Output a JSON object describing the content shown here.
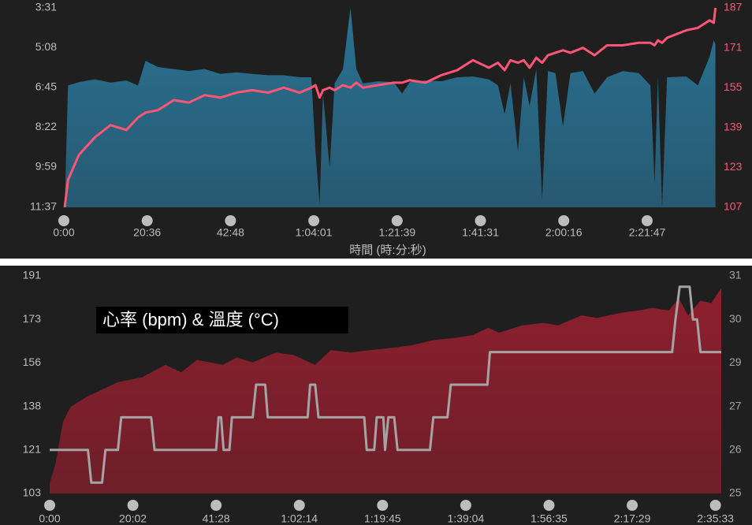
{
  "chart_data": [
    {
      "type": "combo",
      "xlabel": "時間 (時:分:秒)",
      "xlim": [
        0,
        7.82
      ],
      "xticks": [
        {
          "value": 0,
          "label": "0:00"
        },
        {
          "value": 1,
          "label": "20:36"
        },
        {
          "value": 2,
          "label": "42:48"
        },
        {
          "value": 3,
          "label": "1:04:01"
        },
        {
          "value": 4,
          "label": "1:21:39"
        },
        {
          "value": 5,
          "label": "1:41:31"
        },
        {
          "value": 6,
          "label": "2:00:16"
        },
        {
          "value": 7,
          "label": "2:21:47"
        }
      ],
      "ylim": [
        697,
        211
      ],
      "yticks": [
        {
          "value": 211,
          "label": "3:31"
        },
        {
          "value": 308,
          "label": "5:08"
        },
        {
          "value": 405,
          "label": "6:45"
        },
        {
          "value": 502,
          "label": "8:22"
        },
        {
          "value": 599,
          "label": "9:59"
        },
        {
          "value": 697,
          "label": "11:37"
        }
      ],
      "y2lim": [
        107,
        187
      ],
      "y2ticks": [
        187,
        171,
        155,
        139,
        123,
        107
      ],
      "x": [
        0.01,
        0.05,
        0.18,
        0.37,
        0.56,
        0.75,
        0.89,
        0.98,
        1.13,
        1.32,
        1.5,
        1.69,
        1.88,
        2.07,
        2.26,
        2.45,
        2.64,
        2.83,
        2.97,
        3.02,
        3.07,
        3.11,
        3.19,
        3.25,
        3.35,
        3.44,
        3.51,
        3.59,
        3.77,
        3.96,
        4.06,
        4.15,
        4.34,
        4.53,
        4.72,
        4.91,
        5.1,
        5.21,
        5.29,
        5.36,
        5.45,
        5.52,
        5.59,
        5.67,
        5.74,
        5.81,
        5.9,
        5.99,
        6.08,
        6.23,
        6.37,
        6.52,
        6.71,
        6.9,
        7.04,
        7.09,
        7.13,
        7.18,
        7.24,
        7.47,
        7.61,
        7.75,
        7.8,
        7.82
      ],
      "series": [
        {
          "style": "area",
          "color": "#2a7293",
          "values": [
            697,
            400,
            392,
            385,
            393,
            388,
            400,
            340,
            355,
            360,
            365,
            360,
            372,
            368,
            372,
            375,
            375,
            380,
            380,
            560,
            690,
            420,
            600,
            395,
            360,
            211,
            360,
            395,
            390,
            392,
            420,
            392,
            388,
            390,
            380,
            378,
            385,
            400,
            470,
            395,
            560,
            380,
            450,
            360,
            680,
            365,
            370,
            500,
            370,
            365,
            420,
            380,
            365,
            370,
            400,
            640,
            380,
            697,
            380,
            378,
            400,
            330,
            290,
            300
          ]
        },
        {
          "style": "line",
          "axis": "y2",
          "color": "#ff5577",
          "values": [
            107,
            118,
            128,
            135,
            140,
            138,
            143,
            145,
            146,
            150,
            149,
            152,
            151,
            153,
            154,
            153,
            155,
            153,
            155,
            156,
            151,
            154,
            155,
            154,
            156,
            155,
            157,
            155,
            156,
            157,
            157,
            158,
            157,
            160,
            162,
            166,
            163,
            165,
            162,
            166,
            165,
            166,
            163,
            167,
            165,
            168,
            169,
            170,
            169,
            171,
            168,
            172,
            172,
            173,
            173,
            172,
            174,
            173,
            175,
            178,
            179,
            182,
            181,
            187
          ]
        }
      ]
    },
    {
      "type": "combo",
      "title": "心率 (bpm) & 溫度 (°C)",
      "xlim": [
        0,
        8.07
      ],
      "xticks": [
        {
          "value": 0,
          "label": "0:00"
        },
        {
          "value": 1,
          "label": "20:02"
        },
        {
          "value": 2,
          "label": "41:28"
        },
        {
          "value": 3,
          "label": "1:02:14"
        },
        {
          "value": 4,
          "label": "1:19:45"
        },
        {
          "value": 5,
          "label": "1:39:04"
        },
        {
          "value": 6,
          "label": "1:56:35"
        },
        {
          "value": 7,
          "label": "2:17:29"
        },
        {
          "value": 8,
          "label": "2:35:33"
        }
      ],
      "ylim": [
        103,
        191
      ],
      "yticks": [
        191,
        {
          "value": 173.4,
          "label": "173"
        },
        {
          "value": 155.8,
          "label": "156"
        },
        {
          "value": 138.2,
          "label": "138"
        },
        {
          "value": 120.6,
          "label": "121"
        },
        103
      ],
      "y2lim": [
        25,
        31
      ],
      "y2ticks": [
        31,
        {
          "value": 29.8,
          "label": "30"
        },
        {
          "value": 28.6,
          "label": "29"
        },
        {
          "value": 27.4,
          "label": "27"
        },
        {
          "value": 26.2,
          "label": "26"
        },
        25
      ],
      "series": [
        {
          "style": "area",
          "color": "#8e1f2e",
          "x": [
            0,
            0.07,
            0.16,
            0.25,
            0.44,
            0.63,
            0.82,
            1.11,
            1.39,
            1.58,
            1.77,
            2.08,
            2.25,
            2.44,
            2.72,
            2.93,
            3.19,
            3.38,
            3.62,
            3.85,
            4.14,
            4.36,
            4.61,
            4.89,
            5.08,
            5.27,
            5.4,
            5.68,
            5.93,
            6.11,
            6.39,
            6.58,
            6.86,
            7.07,
            7.24,
            7.44,
            7.56,
            7.67,
            7.82,
            7.95,
            8.07
          ],
          "values": [
            107,
            115,
            132,
            138,
            142,
            145,
            148,
            150,
            155,
            152,
            157,
            155,
            158,
            156,
            160,
            159,
            155,
            161,
            160,
            161,
            162,
            163,
            165,
            166,
            167,
            170,
            168,
            171,
            172,
            171,
            175,
            174,
            176,
            177,
            178,
            177,
            182,
            175,
            181,
            180,
            186
          ]
        },
        {
          "style": "line",
          "axis": "y2",
          "color": "#a4a4a4",
          "x": [
            0,
            0.46,
            0.5,
            0.63,
            0.67,
            0.82,
            0.86,
            1.22,
            1.26,
            2.0,
            2.03,
            2.06,
            2.09,
            2.16,
            2.19,
            2.44,
            2.48,
            2.59,
            2.62,
            3.1,
            3.13,
            3.19,
            3.23,
            3.78,
            3.81,
            3.9,
            3.93,
            4.01,
            4.03,
            4.07,
            4.14,
            4.18,
            4.57,
            4.61,
            4.78,
            4.82,
            5.26,
            5.29,
            7.48,
            7.52,
            7.57,
            7.69,
            7.73,
            7.78,
            7.82,
            8.07
          ],
          "values": [
            26.2,
            26.2,
            25.3,
            25.3,
            26.2,
            26.2,
            27.1,
            27.1,
            26.2,
            26.2,
            27.1,
            27.1,
            26.2,
            26.2,
            27.1,
            27.1,
            28.0,
            28.0,
            27.1,
            27.1,
            28.0,
            28.0,
            27.1,
            27.1,
            26.2,
            26.2,
            27.1,
            27.1,
            26.2,
            27.1,
            27.1,
            26.2,
            26.2,
            27.1,
            27.1,
            28.0,
            28.0,
            28.9,
            28.9,
            29.8,
            30.7,
            30.7,
            29.8,
            29.8,
            28.9,
            28.9
          ]
        }
      ]
    }
  ]
}
